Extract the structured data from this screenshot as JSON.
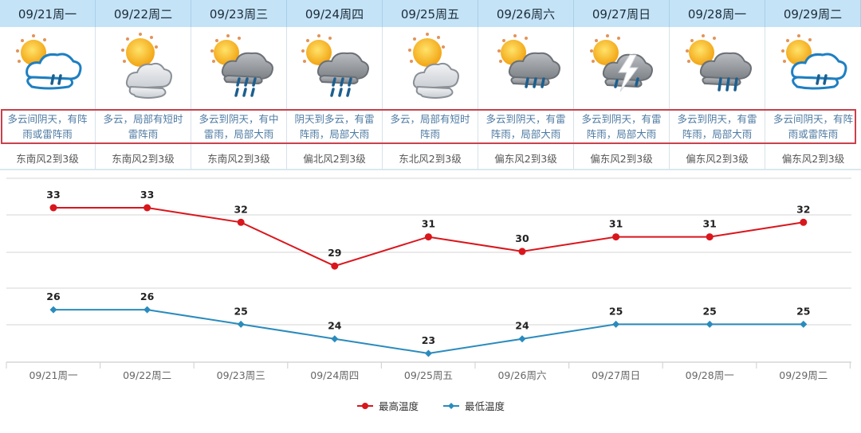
{
  "days": [
    {
      "date": "09/21周一",
      "icon": "partly-cloudy-shower-icon",
      "desc_line1": "多云间阴天，有阵",
      "desc_line2": "雨或雷阵雨",
      "wind": "东南风2到3级"
    },
    {
      "date": "09/22周二",
      "icon": "partly-cloudy-icon",
      "desc_line1": "多云，局部有短时",
      "desc_line2": "雷阵雨",
      "wind": "东南风2到3级"
    },
    {
      "date": "09/23周三",
      "icon": "sun-heavy-rain-icon",
      "desc_line1": "多云到阴天，有中",
      "desc_line2": "雷雨，局部大雨",
      "wind": "东南风2到3级"
    },
    {
      "date": "09/24周四",
      "icon": "sun-heavy-rain-icon",
      "desc_line1": "阴天到多云，有雷",
      "desc_line2": "阵雨，局部大雨",
      "wind": "偏北风2到3级"
    },
    {
      "date": "09/25周五",
      "icon": "partly-cloudy-icon",
      "desc_line1": "多云，局部有短时",
      "desc_line2": "阵雨",
      "wind": "东北风2到3级"
    },
    {
      "date": "09/26周六",
      "icon": "sun-rain-icon",
      "desc_line1": "多云到阴天，有雷",
      "desc_line2": "阵雨，局部大雨",
      "wind": "偏东风2到3级"
    },
    {
      "date": "09/27周日",
      "icon": "sun-thunderstorm-icon",
      "desc_line1": "多云到阴天，有雷",
      "desc_line2": "阵雨，局部大雨",
      "wind": "偏东风2到3级"
    },
    {
      "date": "09/28周一",
      "icon": "sun-rain-icon",
      "desc_line1": "多云到阴天，有雷",
      "desc_line2": "阵雨，局部大雨",
      "wind": "偏东风2到3级"
    },
    {
      "date": "09/29周二",
      "icon": "partly-cloudy-shower-icon",
      "desc_line1": "多云间阴天，有阵",
      "desc_line2": "雨或雷阵雨",
      "wind": "偏东风2到3级"
    }
  ],
  "colors": {
    "high": "#d9161c",
    "low": "#2a8bbd",
    "header_bg": "#c4e3f7",
    "desc_text": "#4f7ba3",
    "highlight_border": "#c9424b"
  },
  "legend": {
    "high_label": "最高温度",
    "low_label": "最低温度"
  },
  "chart_data": {
    "type": "line",
    "title": "",
    "xlabel": "",
    "ylabel": "",
    "categories": [
      "09/21周一",
      "09/22周二",
      "09/23周三",
      "09/24周四",
      "09/25周五",
      "09/26周六",
      "09/27周日",
      "09/28周一",
      "09/29周二"
    ],
    "series": [
      {
        "name": "最高温度",
        "color": "#d9161c",
        "marker": "circle",
        "values": [
          33,
          33,
          32,
          29,
          31,
          30,
          31,
          31,
          32
        ]
      },
      {
        "name": "最低温度",
        "color": "#2a8bbd",
        "marker": "diamond",
        "values": [
          26,
          26,
          25,
          24,
          23,
          24,
          25,
          25,
          25
        ]
      }
    ],
    "grid": true,
    "data_labels": true,
    "legend_position": "bottom",
    "y_axis_visible": false,
    "ylim": [
      22.5,
      35
    ]
  }
}
